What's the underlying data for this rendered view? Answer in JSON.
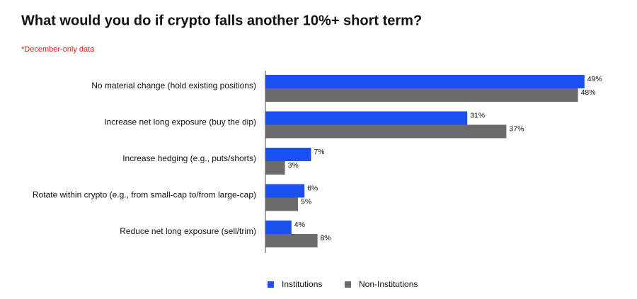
{
  "chart_data": {
    "type": "hbar",
    "title": "What would you do if crypto falls another 10%+ short term?",
    "subtitle": "*December-only data",
    "categories": [
      "No material change (hold existing positions)",
      "Increase net long exposure (buy the dip)",
      "Increase hedging (e.g., puts/shorts)",
      "Rotate within crypto (e.g., from small-cap to/from large-cap)",
      "Reduce net long exposure (sell/trim)"
    ],
    "series": [
      {
        "name": "Institutions",
        "color": "#1a4ff0",
        "values": [
          49,
          31,
          7,
          6,
          4
        ],
        "value_labels": [
          "49%",
          "31%",
          "7%",
          "6%",
          "4%"
        ]
      },
      {
        "name": "Non-Institutions",
        "color": "#6b6b6b",
        "values": [
          48,
          37,
          3,
          5,
          8
        ],
        "value_labels": [
          "48%",
          "37%",
          "3%",
          "5%",
          "8%"
        ]
      }
    ],
    "legend": "bottom"
  }
}
